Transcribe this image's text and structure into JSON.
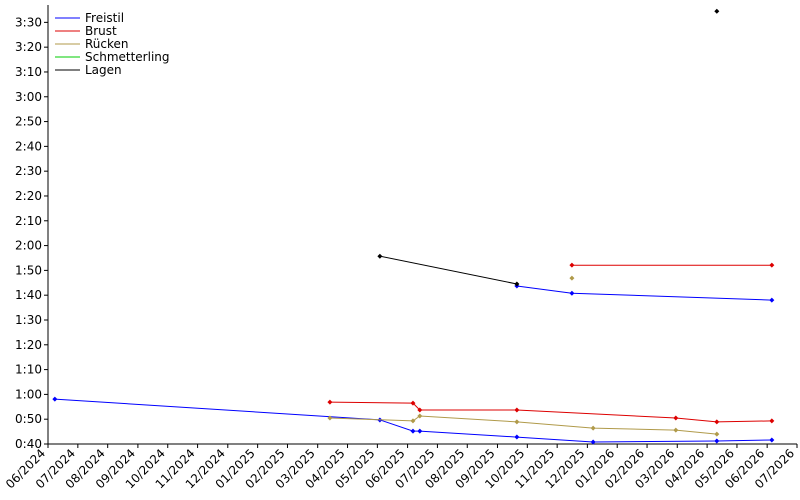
{
  "chart_data": {
    "type": "line",
    "series": [
      {
        "name": "Freistil",
        "color": "#0000ff",
        "x": [
          2024.436,
          2025.34,
          2025.432,
          2025.451,
          2025.721,
          2025.933,
          2026.277,
          2026.43,
          null,
          2025.721,
          2025.874,
          2026.43
        ],
        "values": [
          58.1,
          49.7,
          45.2,
          45.2,
          42.8,
          40.8,
          41.2,
          41.6,
          null,
          103.7,
          100.8,
          98.0
        ]
      },
      {
        "name": "Brust",
        "color": "#dd0000",
        "x": [
          2025.201,
          2025.432,
          2025.451,
          2025.721,
          2026.163,
          2026.277,
          2026.43,
          null,
          2025.874,
          2026.43
        ],
        "values": [
          56.9,
          56.5,
          53.7,
          53.7,
          50.5,
          48.9,
          49.3,
          null,
          112.1,
          112.1
        ]
      },
      {
        "name": "Rücken",
        "color": "#b09a4a",
        "x": [
          2025.201,
          2025.432,
          2025.451,
          2025.721,
          2025.933,
          2026.163,
          2026.277,
          null,
          2025.874
        ],
        "values": [
          50.5,
          49.3,
          51.3,
          48.9,
          46.4,
          45.6,
          44.0,
          null,
          106.9
        ]
      },
      {
        "name": "Schmetterling",
        "color": "#00cc00",
        "x": [],
        "values": []
      },
      {
        "name": "Lagen",
        "color": "#000000",
        "x": [
          2025.34,
          2025.721,
          null,
          2026.277
        ],
        "values": [
          115.7,
          104.5,
          null,
          214.5
        ]
      }
    ],
    "xlim": [
      2024.417,
      2026.5
    ],
    "xticks": [
      {
        "value": 2024.417,
        "label": "06/2024"
      },
      {
        "value": 2024.5,
        "label": "07/2024"
      },
      {
        "value": 2024.583,
        "label": "08/2024"
      },
      {
        "value": 2024.667,
        "label": "09/2024"
      },
      {
        "value": 2024.75,
        "label": "10/2024"
      },
      {
        "value": 2024.833,
        "label": "11/2024"
      },
      {
        "value": 2024.917,
        "label": "12/2024"
      },
      {
        "value": 2025.0,
        "label": "01/2025"
      },
      {
        "value": 2025.083,
        "label": "02/2025"
      },
      {
        "value": 2025.167,
        "label": "03/2025"
      },
      {
        "value": 2025.25,
        "label": "04/2025"
      },
      {
        "value": 2025.333,
        "label": "05/2025"
      },
      {
        "value": 2025.417,
        "label": "06/2025"
      },
      {
        "value": 2025.5,
        "label": "07/2025"
      },
      {
        "value": 2025.583,
        "label": "08/2025"
      },
      {
        "value": 2025.667,
        "label": "09/2025"
      },
      {
        "value": 2025.75,
        "label": "10/2025"
      },
      {
        "value": 2025.833,
        "label": "11/2025"
      },
      {
        "value": 2025.917,
        "label": "12/2025"
      },
      {
        "value": 2026.0,
        "label": "01/2026"
      },
      {
        "value": 2026.083,
        "label": "02/2026"
      },
      {
        "value": 2026.167,
        "label": "03/2026"
      },
      {
        "value": 2026.25,
        "label": "04/2026"
      },
      {
        "value": 2026.333,
        "label": "05/2026"
      },
      {
        "value": 2026.417,
        "label": "06/2026"
      },
      {
        "value": 2026.5,
        "label": "07/2026"
      }
    ],
    "ylim": [
      40,
      217
    ],
    "yticks": [
      {
        "value": 40,
        "label": "0:40"
      },
      {
        "value": 50,
        "label": "0:50"
      },
      {
        "value": 60,
        "label": "1:00"
      },
      {
        "value": 70,
        "label": "1:10"
      },
      {
        "value": 80,
        "label": "1:20"
      },
      {
        "value": 90,
        "label": "1:30"
      },
      {
        "value": 100,
        "label": "1:40"
      },
      {
        "value": 110,
        "label": "1:50"
      },
      {
        "value": 120,
        "label": "2:00"
      },
      {
        "value": 130,
        "label": "2:10"
      },
      {
        "value": 140,
        "label": "2:20"
      },
      {
        "value": 150,
        "label": "2:30"
      },
      {
        "value": 160,
        "label": "2:40"
      },
      {
        "value": 170,
        "label": "2:50"
      },
      {
        "value": 180,
        "label": "3:00"
      },
      {
        "value": 190,
        "label": "3:10"
      },
      {
        "value": 200,
        "label": "3:20"
      },
      {
        "value": 210,
        "label": "3:30"
      }
    ],
    "legend": "upper-left"
  }
}
